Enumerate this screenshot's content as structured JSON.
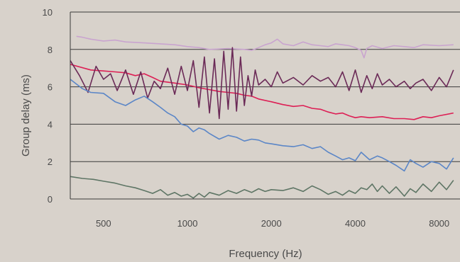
{
  "chart_data": {
    "type": "line",
    "xlabel": "Frequency (Hz)",
    "ylabel": "Group delay (ms)",
    "x_scale": "log",
    "xlim": [
      380,
      9500
    ],
    "ylim": [
      0,
      10
    ],
    "x_ticks": [
      500,
      1000,
      2000,
      4000,
      8000
    ],
    "x_tick_labels": [
      "500",
      "1000",
      "2000",
      "4000",
      "8000"
    ],
    "y_ticks": [
      0,
      2,
      4,
      6,
      8,
      10
    ],
    "y_tick_labels": [
      "0",
      "2",
      "4",
      "6",
      "8",
      "10"
    ],
    "grid": "horizontal",
    "legend": "none",
    "series": [
      {
        "color": "#c9a4cf",
        "x": [
          400,
          420,
          450,
          500,
          550,
          600,
          700,
          800,
          900,
          1000,
          1100,
          1200,
          1400,
          1600,
          1700,
          1800,
          1900,
          2000,
          2100,
          2200,
          2400,
          2600,
          2800,
          3000,
          3200,
          3400,
          3600,
          3800,
          4000,
          4200,
          4300,
          4400,
          4600,
          5000,
          5500,
          6000,
          6500,
          7000,
          8000,
          9000
        ],
        "y": [
          8.7,
          8.65,
          8.55,
          8.45,
          8.5,
          8.4,
          8.35,
          8.3,
          8.25,
          8.15,
          8.1,
          8.0,
          8.05,
          8.0,
          7.95,
          8.1,
          8.25,
          8.35,
          8.55,
          8.3,
          8.2,
          8.4,
          8.25,
          8.2,
          8.15,
          8.3,
          8.25,
          8.2,
          8.1,
          7.95,
          7.55,
          8.05,
          8.2,
          8.05,
          8.2,
          8.15,
          8.1,
          8.25,
          8.2,
          8.25
        ]
      },
      {
        "color": "#dd1f55",
        "x": [
          380,
          450,
          500,
          550,
          600,
          650,
          700,
          750,
          800,
          900,
          1000,
          1100,
          1200,
          1300,
          1400,
          1500,
          1600,
          1700,
          1800,
          2000,
          2200,
          2400,
          2600,
          2800,
          3000,
          3200,
          3400,
          3600,
          3800,
          4000,
          4200,
          4500,
          5000,
          5500,
          6000,
          6500,
          7000,
          7500,
          8000,
          9000
        ],
        "y": [
          7.2,
          6.9,
          6.85,
          6.8,
          6.75,
          6.6,
          6.7,
          6.5,
          6.3,
          6.2,
          6.1,
          5.95,
          5.85,
          5.75,
          5.7,
          5.65,
          5.55,
          5.5,
          5.35,
          5.2,
          5.05,
          4.95,
          5.0,
          4.85,
          4.8,
          4.65,
          4.55,
          4.6,
          4.45,
          4.35,
          4.4,
          4.35,
          4.4,
          4.3,
          4.3,
          4.25,
          4.4,
          4.35,
          4.45,
          4.6
        ]
      },
      {
        "color": "#6b2a57",
        "x": [
          380,
          410,
          440,
          470,
          500,
          530,
          560,
          600,
          640,
          680,
          720,
          760,
          800,
          850,
          900,
          950,
          1000,
          1050,
          1100,
          1150,
          1200,
          1250,
          1300,
          1350,
          1400,
          1450,
          1500,
          1550,
          1600,
          1650,
          1700,
          1750,
          1800,
          1900,
          2000,
          2100,
          2200,
          2400,
          2600,
          2800,
          3000,
          3200,
          3400,
          3600,
          3800,
          4000,
          4200,
          4400,
          4600,
          4800,
          5000,
          5300,
          5600,
          6000,
          6300,
          6600,
          7000,
          7500,
          8000,
          8500,
          9000
        ],
        "y": [
          7.4,
          6.6,
          5.7,
          7.1,
          6.4,
          6.7,
          5.8,
          6.9,
          5.6,
          6.8,
          5.4,
          6.3,
          5.9,
          7.0,
          5.6,
          7.1,
          5.8,
          7.4,
          4.9,
          7.6,
          4.6,
          7.5,
          4.3,
          7.9,
          4.8,
          8.1,
          4.7,
          7.6,
          5.0,
          6.6,
          5.5,
          6.9,
          6.1,
          6.4,
          6.0,
          6.8,
          6.2,
          6.5,
          6.1,
          6.6,
          6.3,
          6.5,
          6.0,
          6.8,
          5.8,
          6.9,
          5.7,
          6.6,
          5.9,
          6.7,
          6.1,
          6.4,
          6.0,
          6.3,
          5.9,
          6.2,
          6.4,
          5.8,
          6.5,
          6.0,
          6.9
        ]
      },
      {
        "color": "#5b86c7",
        "x": [
          380,
          420,
          450,
          500,
          550,
          600,
          650,
          700,
          750,
          800,
          850,
          900,
          950,
          1000,
          1050,
          1100,
          1150,
          1200,
          1300,
          1400,
          1500,
          1600,
          1700,
          1800,
          1900,
          2000,
          2200,
          2400,
          2600,
          2800,
          3000,
          3200,
          3400,
          3600,
          3800,
          4000,
          4200,
          4500,
          4800,
          5000,
          5300,
          5600,
          6000,
          6300,
          6600,
          7000,
          7500,
          8000,
          8500,
          9000
        ],
        "y": [
          6.4,
          5.9,
          5.7,
          5.65,
          5.2,
          5.0,
          5.3,
          5.5,
          5.2,
          4.9,
          4.6,
          4.4,
          4.0,
          3.9,
          3.6,
          3.8,
          3.7,
          3.5,
          3.2,
          3.4,
          3.3,
          3.1,
          3.2,
          3.15,
          3.0,
          2.95,
          2.85,
          2.8,
          2.9,
          2.7,
          2.8,
          2.5,
          2.3,
          2.1,
          2.2,
          2.05,
          2.5,
          2.1,
          2.3,
          2.2,
          2.0,
          1.8,
          1.5,
          2.1,
          1.9,
          1.7,
          2.0,
          1.9,
          1.6,
          2.2
        ]
      },
      {
        "color": "#5e7565",
        "x": [
          380,
          420,
          460,
          500,
          550,
          600,
          650,
          700,
          750,
          800,
          850,
          900,
          950,
          1000,
          1050,
          1100,
          1150,
          1200,
          1300,
          1400,
          1500,
          1600,
          1700,
          1800,
          1900,
          2000,
          2200,
          2400,
          2600,
          2800,
          3000,
          3200,
          3400,
          3600,
          3800,
          4000,
          4200,
          4400,
          4600,
          4800,
          5000,
          5300,
          5600,
          6000,
          6300,
          6600,
          7000,
          7500,
          8000,
          8500,
          9000
        ],
        "y": [
          1.2,
          1.1,
          1.05,
          0.95,
          0.85,
          0.7,
          0.6,
          0.45,
          0.3,
          0.5,
          0.2,
          0.35,
          0.15,
          0.25,
          0.05,
          0.3,
          0.1,
          0.35,
          0.2,
          0.45,
          0.3,
          0.5,
          0.35,
          0.55,
          0.4,
          0.5,
          0.45,
          0.6,
          0.4,
          0.7,
          0.5,
          0.25,
          0.4,
          0.2,
          0.45,
          0.3,
          0.6,
          0.5,
          0.8,
          0.4,
          0.7,
          0.3,
          0.65,
          0.15,
          0.55,
          0.35,
          0.8,
          0.4,
          0.9,
          0.5,
          1.0
        ]
      }
    ]
  }
}
